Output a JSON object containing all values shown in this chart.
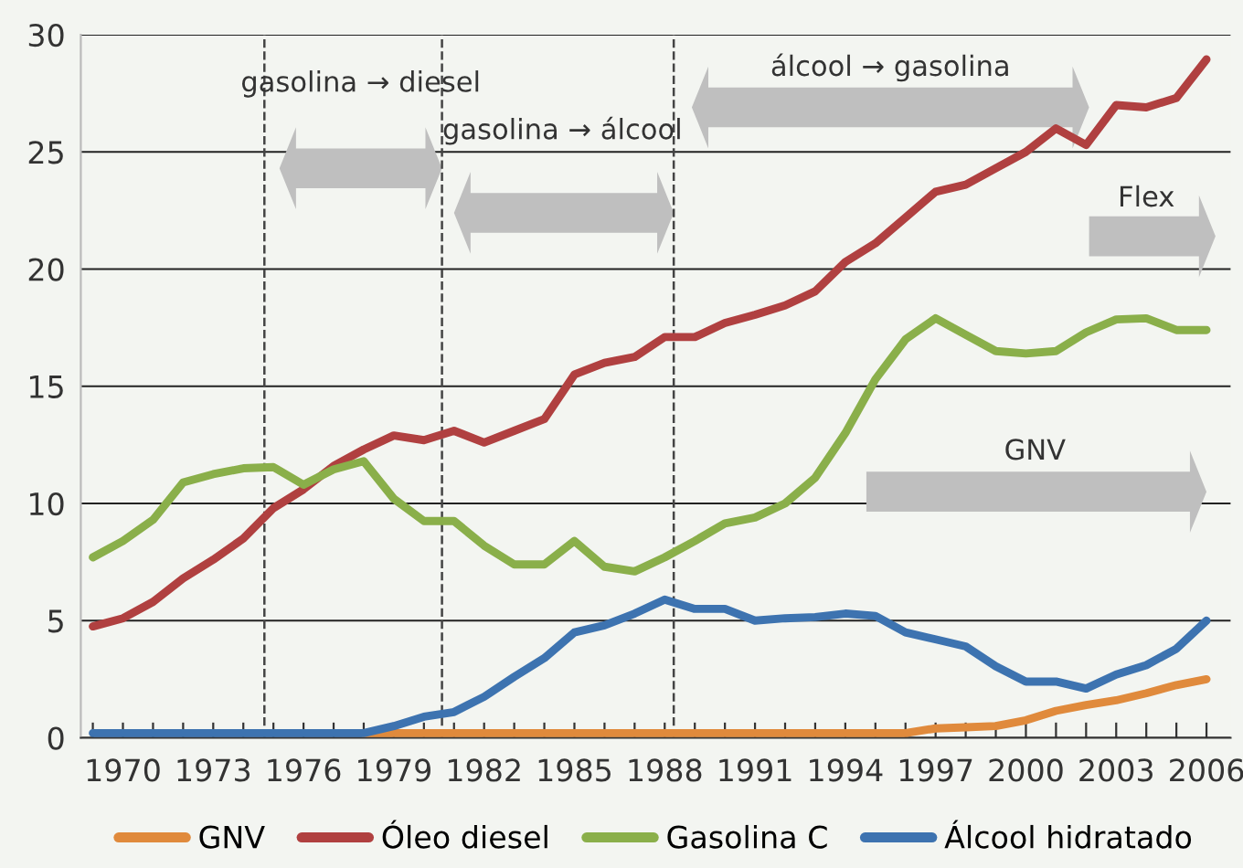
{
  "chart_data": {
    "type": "line",
    "x": [
      1969,
      1970,
      1971,
      1972,
      1973,
      1974,
      1975,
      1976,
      1977,
      1978,
      1979,
      1980,
      1981,
      1982,
      1983,
      1984,
      1985,
      1986,
      1987,
      1988,
      1989,
      1990,
      1991,
      1992,
      1993,
      1994,
      1995,
      1996,
      1997,
      1998,
      1999,
      2000,
      2001,
      2002,
      2003,
      2004,
      2005,
      2006
    ],
    "series": [
      {
        "name": "GNV",
        "color": "#e08a3c",
        "values": [
          null,
          null,
          null,
          null,
          null,
          null,
          null,
          null,
          null,
          0.2,
          0.2,
          0.2,
          0.2,
          0.2,
          0.2,
          0.2,
          0.2,
          0.2,
          0.2,
          0.2,
          0.2,
          0.2,
          0.2,
          0.2,
          0.2,
          0.2,
          0.2,
          0.2,
          0.4,
          0.45,
          0.5,
          0.75,
          1.15,
          1.4,
          1.6,
          1.9,
          2.25,
          2.5
        ]
      },
      {
        "name": "Óleo diesel",
        "color": "#b04040",
        "values": [
          4.75,
          5.1,
          5.8,
          6.8,
          7.6,
          8.5,
          9.8,
          10.6,
          11.6,
          12.3,
          12.9,
          12.7,
          13.1,
          12.6,
          13.1,
          13.6,
          15.5,
          16.0,
          16.25,
          17.1,
          17.1,
          17.7,
          18.05,
          18.45,
          19.05,
          20.3,
          21.1,
          22.2,
          23.3,
          23.6,
          24.3,
          25.0,
          26.0,
          25.3,
          27.0,
          26.9,
          27.3,
          28.95
        ]
      },
      {
        "name": "Gasolina C",
        "color": "#8aaf4a",
        "values": [
          7.7,
          8.4,
          9.3,
          10.9,
          11.25,
          11.5,
          11.55,
          10.8,
          11.45,
          11.8,
          10.2,
          9.25,
          9.25,
          8.2,
          7.4,
          7.4,
          8.4,
          7.3,
          7.1,
          7.7,
          8.4,
          9.15,
          9.4,
          10.0,
          11.1,
          13.0,
          15.3,
          17.0,
          17.9,
          17.2,
          16.5,
          16.4,
          16.5,
          17.3,
          17.85,
          17.9,
          17.4,
          17.4
        ]
      },
      {
        "name": "Álcool hidratado",
        "color": "#3d73b0",
        "values": [
          0.2,
          0.2,
          0.2,
          0.2,
          0.2,
          0.2,
          0.2,
          0.2,
          0.2,
          0.2,
          0.5,
          0.9,
          1.1,
          1.75,
          2.6,
          3.4,
          4.5,
          4.8,
          5.3,
          5.9,
          5.5,
          5.5,
          5.0,
          5.1,
          5.15,
          5.3,
          5.2,
          4.5,
          4.2,
          3.9,
          3.05,
          2.4,
          2.4,
          2.1,
          2.7,
          3.1,
          3.8,
          5.0
        ]
      }
    ],
    "xlim": [
      1968.6,
      2006.8
    ],
    "xticks": [
      {
        "value": 1969,
        "label": null
      },
      1970,
      {
        "value": 1971,
        "label": null
      },
      {
        "value": 1972,
        "label": null
      },
      1973,
      {
        "value": 1974,
        "label": null
      },
      {
        "value": 1975,
        "label": null
      },
      1976,
      {
        "value": 1977,
        "label": null
      },
      {
        "value": 1978,
        "label": null
      },
      1979,
      {
        "value": 1980,
        "label": null
      },
      {
        "value": 1981,
        "label": null
      },
      1982,
      {
        "value": 1983,
        "label": null
      },
      {
        "value": 1984,
        "label": null
      },
      1985,
      {
        "value": 1986,
        "label": null
      },
      {
        "value": 1987,
        "label": null
      },
      1988,
      {
        "value": 1989,
        "label": null
      },
      {
        "value": 1990,
        "label": null
      },
      1991,
      {
        "value": 1992,
        "label": null
      },
      {
        "value": 1993,
        "label": null
      },
      1994,
      {
        "value": 1995,
        "label": null
      },
      {
        "value": 1996,
        "label": null
      },
      1997,
      {
        "value": 1998,
        "label": null
      },
      {
        "value": 1999,
        "label": null
      },
      2000,
      {
        "value": 2001,
        "label": null
      },
      {
        "value": 2002,
        "label": null
      },
      2003,
      {
        "value": 2004,
        "label": null
      },
      {
        "value": 2005,
        "label": null
      },
      2006
    ],
    "ylim": [
      0,
      30
    ],
    "yticks": [
      0,
      5,
      10,
      15,
      20,
      25,
      30
    ],
    "grid": "y",
    "legend": "bottom",
    "marker": "none",
    "line_style": "solid",
    "ref_lines": [
      {
        "axis": "x",
        "value": 1974.7,
        "line_style": "dashed"
      },
      {
        "axis": "x",
        "value": 1980.6,
        "line_style": "dashed"
      },
      {
        "axis": "x",
        "value": 1988.3,
        "line_style": "dashed"
      }
    ],
    "annotations": [
      "gasolina → diesel",
      "gasolina → álcool",
      "álcool → gasolina",
      "Flex",
      "GNV"
    ]
  }
}
